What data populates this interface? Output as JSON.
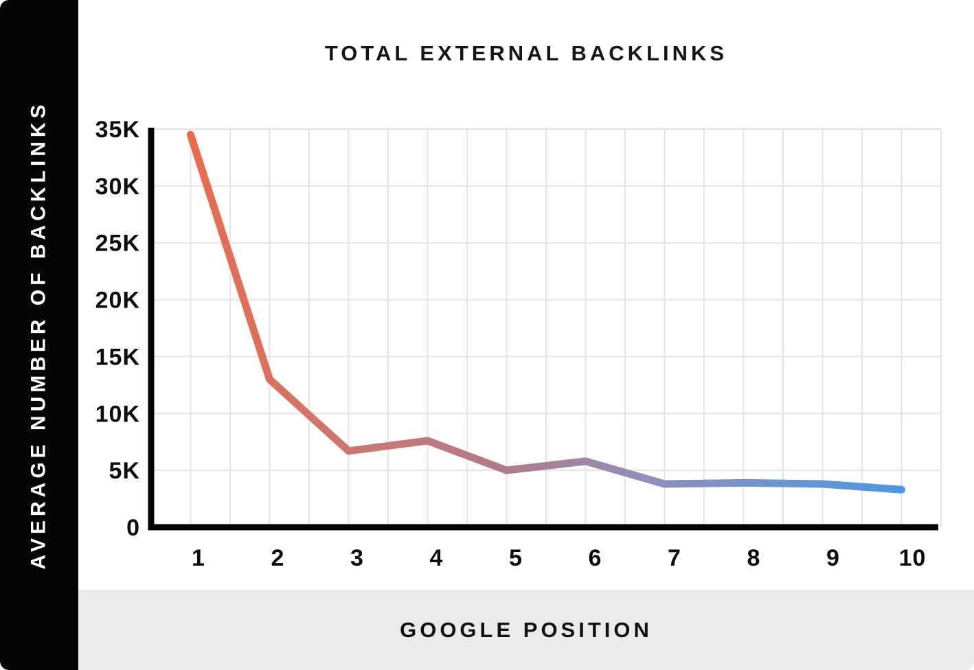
{
  "title": "TOTAL EXTERNAL BACKLINKS",
  "chart_data": {
    "type": "line",
    "title": "TOTAL EXTERNAL BACKLINKS",
    "xlabel": "GOOGLE POSITION",
    "ylabel": "AVERAGE NUMBER OF BACKLINKS",
    "x": [
      1,
      2,
      3,
      4,
      5,
      6,
      7,
      8,
      9,
      10
    ],
    "values": [
      34500,
      13000,
      6700,
      7600,
      5000,
      5800,
      3800,
      3900,
      3800,
      3300
    ],
    "x_tick_labels": [
      "1",
      "2",
      "3",
      "4",
      "5",
      "6",
      "7",
      "8",
      "9",
      "10"
    ],
    "y_tick_labels": [
      "0",
      "5K",
      "10K",
      "15K",
      "20K",
      "25K",
      "30K",
      "35K"
    ],
    "ylim": [
      0,
      35000
    ],
    "y_tick_step": 5000,
    "grid": true,
    "legend": "none",
    "line_gradient": [
      "#EC6A4B",
      "#C97873",
      "#AF7C89",
      "#8D90BE",
      "#4D97E3"
    ],
    "line_gradient_offsets": [
      0,
      0.25,
      0.45,
      0.65,
      1
    ]
  },
  "colors": {
    "sidebar_bg": "#040404",
    "sidebar_text": "#FFFFFF",
    "band_bg": "#EBEBEB",
    "axis": "#050505",
    "gridline": "#E5E5E5",
    "title_text": "#161616",
    "chart_bg": "#FFFFFF"
  }
}
